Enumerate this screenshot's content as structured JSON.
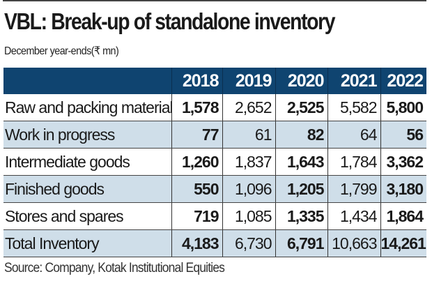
{
  "title": "VBL: Break-up of standalone inventory",
  "subtitle": "December year-ends(₹ mn)",
  "colors": {
    "header_bg": "#0f4470",
    "shaded_row": "#cfdee9"
  },
  "table": {
    "columns": [
      "",
      "2018",
      "2019",
      "2020",
      "2021",
      "2022"
    ],
    "rows": [
      {
        "label": "Raw and packing material",
        "values": [
          "1,578",
          "2,652",
          "2,525",
          "5,582",
          "5,800"
        ]
      },
      {
        "label": "Work in progress",
        "values": [
          "77",
          "61",
          "82",
          "64",
          "56"
        ]
      },
      {
        "label": "Intermediate goods",
        "values": [
          "1,260",
          "1,837",
          "1,643",
          "1,784",
          "3,362"
        ]
      },
      {
        "label": "Finished goods",
        "values": [
          "550",
          "1,096",
          "1,205",
          "1,799",
          "3,180"
        ]
      },
      {
        "label": "Stores and spares",
        "values": [
          "719",
          "1,085",
          "1,335",
          "1,434",
          "1,864"
        ]
      },
      {
        "label": "Total Inventory",
        "values": [
          "4,183",
          "6,730",
          "6,791",
          "10,663",
          "14,261"
        ]
      }
    ]
  },
  "source": "Source: Company, Kotak Institutional Equities"
}
